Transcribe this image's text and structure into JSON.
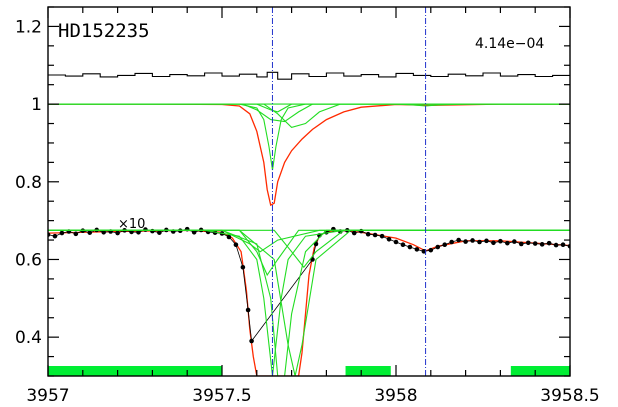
{
  "chart_data": {
    "type": "line",
    "title": "HD152235",
    "annotation": "4.14e−04",
    "multiplier_label": "×10",
    "xlabel": "",
    "ylabel": "",
    "xlim": [
      3957.0,
      3958.5
    ],
    "ylim": [
      0.3,
      1.25
    ],
    "x_ticks": [
      3957,
      3957.5,
      3958,
      3958.5
    ],
    "x_tick_labels": [
      "3957",
      "3957.5",
      "3958",
      "3958.5"
    ],
    "y_ticks": [
      0.4,
      0.6,
      0.8,
      1.0,
      1.2
    ],
    "y_tick_labels": [
      "0.4",
      "0.6",
      "0.8",
      "1",
      "1.2"
    ],
    "grid": false,
    "legend": "none",
    "vertical_markers": [
      3957.645,
      3958.085
    ],
    "fit_bands": [
      [
        3957.0,
        3957.5
      ],
      [
        3957.855,
        3957.985
      ],
      [
        3958.33,
        3958.5
      ]
    ],
    "colors": {
      "data": "#000000",
      "fit": "#ff2a00",
      "components": "#22dd22",
      "marker": "#2233cc",
      "band": "#00ee33",
      "residual": "#000000"
    },
    "series": [
      {
        "role": "residual",
        "x": [
          3957.0,
          3957.05,
          3957.1,
          3957.15,
          3957.2,
          3957.25,
          3957.3,
          3957.35,
          3957.4,
          3957.45,
          3957.5,
          3957.55,
          3957.6,
          3957.63,
          3957.66,
          3957.7,
          3957.75,
          3957.8,
          3957.85,
          3957.9,
          3957.95,
          3958.0,
          3958.05,
          3958.1,
          3958.15,
          3958.2,
          3958.25,
          3958.3,
          3958.35,
          3958.4,
          3958.45,
          3958.5
        ],
        "values": [
          1.075,
          1.072,
          1.078,
          1.07,
          1.074,
          1.079,
          1.071,
          1.076,
          1.073,
          1.08,
          1.072,
          1.077,
          1.07,
          1.082,
          1.064,
          1.078,
          1.071,
          1.08,
          1.072,
          1.076,
          1.07,
          1.079,
          1.074,
          1.071,
          1.077,
          1.073,
          1.08,
          1.072,
          1.076,
          1.071,
          1.074,
          1.073
        ]
      },
      {
        "role": "model-upper",
        "x": [
          3957.0,
          3957.3,
          3957.5,
          3957.55,
          3957.58,
          3957.6,
          3957.62,
          3957.63,
          3957.64,
          3957.65,
          3957.66,
          3957.68,
          3957.7,
          3957.73,
          3957.76,
          3957.8,
          3957.85,
          3957.9,
          3958.0,
          3958.1,
          3958.3,
          3958.5
        ],
        "values": [
          1.0,
          1.0,
          0.999,
          0.995,
          0.975,
          0.93,
          0.85,
          0.78,
          0.74,
          0.745,
          0.8,
          0.85,
          0.88,
          0.91,
          0.935,
          0.96,
          0.98,
          0.992,
          0.999,
          0.997,
          1.0,
          1.0
        ]
      },
      {
        "role": "component",
        "x": [
          3957.0,
          3957.55,
          3957.6,
          3957.62,
          3957.635,
          3957.645,
          3957.655,
          3957.67,
          3957.69,
          3957.74,
          3958.5
        ],
        "values": [
          1.0,
          1.0,
          0.99,
          0.96,
          0.89,
          0.83,
          0.89,
          0.96,
          0.99,
          1.0,
          1.0
        ]
      },
      {
        "role": "component",
        "x": [
          3957.0,
          3957.56,
          3957.6,
          3957.64,
          3957.68,
          3957.72,
          3957.76,
          3958.5
        ],
        "values": [
          1.0,
          1.0,
          0.985,
          0.96,
          0.955,
          0.98,
          1.0,
          1.0
        ]
      },
      {
        "role": "component",
        "x": [
          3957.0,
          3957.62,
          3957.66,
          3957.7,
          3957.74,
          3957.78,
          3957.84,
          3958.5
        ],
        "values": [
          1.0,
          1.0,
          0.975,
          0.94,
          0.95,
          0.98,
          1.0,
          1.0
        ]
      },
      {
        "role": "component",
        "x": [
          3957.0,
          3957.6,
          3957.64,
          3957.66,
          3957.7,
          3958.5
        ],
        "values": [
          1.0,
          1.0,
          0.985,
          0.98,
          1.0,
          1.0
        ]
      },
      {
        "role": "component",
        "x": [
          3957.0,
          3958.0,
          3958.05,
          3958.085,
          3958.12,
          3958.2,
          3958.5
        ],
        "values": [
          1.0,
          1.0,
          0.998,
          0.995,
          0.998,
          1.0,
          1.0
        ]
      },
      {
        "role": "model-lower",
        "x": [
          3957.0,
          3957.2,
          3957.4,
          3957.5,
          3957.53,
          3957.555,
          3957.57,
          3957.58,
          3957.59,
          3957.6,
          3957.72,
          3957.73,
          3957.74,
          3957.75,
          3957.765,
          3957.78,
          3957.8,
          3957.85,
          3957.9,
          3958.0,
          3958.05,
          3958.085,
          3958.12,
          3958.2,
          3958.3,
          3958.4,
          3958.5
        ],
        "values": [
          0.668,
          0.672,
          0.675,
          0.67,
          0.655,
          0.62,
          0.52,
          0.42,
          0.35,
          0.3,
          0.3,
          0.36,
          0.46,
          0.56,
          0.63,
          0.66,
          0.672,
          0.674,
          0.67,
          0.655,
          0.638,
          0.622,
          0.634,
          0.648,
          0.648,
          0.642,
          0.636
        ]
      },
      {
        "role": "data",
        "x": [
          3957.0,
          3957.02,
          3957.04,
          3957.06,
          3957.08,
          3957.1,
          3957.12,
          3957.14,
          3957.16,
          3957.18,
          3957.2,
          3957.22,
          3957.24,
          3957.26,
          3957.28,
          3957.3,
          3957.32,
          3957.34,
          3957.36,
          3957.38,
          3957.4,
          3957.42,
          3957.44,
          3957.46,
          3957.48,
          3957.5,
          3957.52,
          3957.54,
          3957.56,
          3957.575,
          3957.585,
          3957.76,
          3957.77,
          3957.78,
          3957.8,
          3957.82,
          3957.84,
          3957.86,
          3957.88,
          3957.9,
          3957.92,
          3957.94,
          3957.96,
          3957.98,
          3958.0,
          3958.02,
          3958.04,
          3958.06,
          3958.08,
          3958.1,
          3958.12,
          3958.14,
          3958.16,
          3958.18,
          3958.2,
          3958.22,
          3958.24,
          3958.26,
          3958.28,
          3958.3,
          3958.32,
          3958.34,
          3958.36,
          3958.38,
          3958.4,
          3958.42,
          3958.44,
          3958.46,
          3958.48,
          3958.5
        ],
        "values": [
          0.664,
          0.66,
          0.668,
          0.672,
          0.666,
          0.674,
          0.669,
          0.676,
          0.67,
          0.672,
          0.668,
          0.675,
          0.671,
          0.67,
          0.677,
          0.673,
          0.669,
          0.676,
          0.672,
          0.674,
          0.678,
          0.67,
          0.676,
          0.671,
          0.669,
          0.667,
          0.658,
          0.638,
          0.58,
          0.47,
          0.39,
          0.6,
          0.64,
          0.662,
          0.67,
          0.678,
          0.672,
          0.675,
          0.668,
          0.673,
          0.665,
          0.663,
          0.66,
          0.652,
          0.645,
          0.638,
          0.632,
          0.626,
          0.621,
          0.624,
          0.632,
          0.638,
          0.645,
          0.65,
          0.646,
          0.649,
          0.645,
          0.648,
          0.643,
          0.647,
          0.642,
          0.646,
          0.64,
          0.643,
          0.641,
          0.639,
          0.642,
          0.637,
          0.638,
          0.634
        ]
      },
      {
        "role": "component-lower",
        "x": [
          3957.0,
          3957.45,
          3957.55,
          3957.6,
          3957.62,
          3957.635,
          3957.645,
          3957.655,
          3957.67,
          3957.69,
          3957.74,
          3957.85,
          3958.5
        ],
        "values": [
          0.675,
          0.675,
          0.66,
          0.6,
          0.5,
          0.38,
          0.3,
          0.38,
          0.5,
          0.6,
          0.66,
          0.675,
          0.675
        ]
      },
      {
        "role": "component-lower",
        "x": [
          3957.0,
          3957.5,
          3957.6,
          3957.64,
          3957.66,
          3957.68,
          3957.7,
          3957.74,
          3957.8,
          3958.5
        ],
        "values": [
          0.675,
          0.675,
          0.64,
          0.5,
          0.3,
          0.3,
          0.46,
          0.62,
          0.675,
          0.675
        ]
      },
      {
        "role": "component-lower",
        "x": [
          3957.0,
          3957.55,
          3957.65,
          3957.69,
          3957.71,
          3957.73,
          3957.77,
          3957.87,
          3958.5
        ],
        "values": [
          0.675,
          0.675,
          0.6,
          0.38,
          0.3,
          0.38,
          0.6,
          0.675,
          0.675
        ]
      },
      {
        "role": "component-lower",
        "x": [
          3957.0,
          3957.55,
          3957.6,
          3957.63,
          3957.66,
          3957.72,
          3958.5
        ],
        "values": [
          0.675,
          0.675,
          0.62,
          0.56,
          0.6,
          0.675,
          0.675
        ]
      },
      {
        "role": "component-lower",
        "x": [
          3957.0,
          3957.5,
          3957.58,
          3957.61,
          3957.66,
          3957.78,
          3958.5
        ],
        "values": [
          0.675,
          0.675,
          0.64,
          0.62,
          0.65,
          0.675,
          0.675
        ]
      },
      {
        "role": "component-lower",
        "x": [
          3957.0,
          3957.65,
          3957.7,
          3957.735,
          3957.77,
          3957.85,
          3958.5
        ],
        "values": [
          0.675,
          0.675,
          0.62,
          0.58,
          0.62,
          0.675,
          0.675
        ]
      }
    ]
  }
}
